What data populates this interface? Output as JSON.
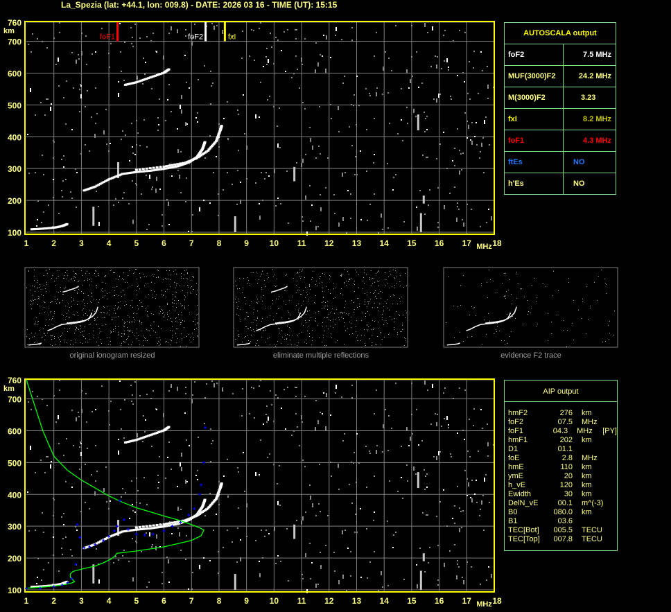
{
  "title": "La_Spezia (lat: +44.1, lon: 009.8) - DATE: 2026 03 16 - TIME (UT): 15:15",
  "colors": {
    "axis": "#ffff00",
    "grid": "#808080",
    "trace": "#ffffff",
    "foF1": "#ff0000",
    "foF2": "#ffffff",
    "fxI": "#ffff00",
    "aip_points": "#0000ff",
    "profile": "#00ff00",
    "table_border": "#7fe07f"
  },
  "autoscala": {
    "title": "AUTOSCALA output",
    "rows": [
      {
        "label": "foF2",
        "value": "7.5 MHz",
        "color": "#ffffff"
      },
      {
        "label": "MUF(3000)F2",
        "value": "24.2 MHz",
        "color": "#ffff80"
      },
      {
        "label": "M(3000)F2",
        "value": "3.23",
        "color": "#ffff80"
      },
      {
        "label": "fxI",
        "value": "8.2 MHz",
        "color": "#ffff00",
        "value_color": "#c8c800"
      },
      {
        "label": "foF1",
        "value": "4.3 MHz",
        "color": "#ff0000"
      },
      {
        "label": "ftEs",
        "value": "NO",
        "color": "#1e78ff"
      },
      {
        "label": "h'Es",
        "value": "NO",
        "color": "#ffff80"
      }
    ]
  },
  "aip": {
    "title": "AIP output",
    "rows": [
      {
        "name": "hmF2",
        "value": "276",
        "unit": "km",
        "extra": ""
      },
      {
        "name": "foF2",
        "value": "07.5",
        "unit": "MHz",
        "extra": ""
      },
      {
        "name": "foF1",
        "value": "04.3",
        "unit": "MHz",
        "extra": "[PY]"
      },
      {
        "name": "hmF1",
        "value": "202",
        "unit": "km",
        "extra": ""
      },
      {
        "name": "D1",
        "value": "01.1",
        "unit": "",
        "extra": ""
      },
      {
        "name": "foE",
        "value": "2.8",
        "unit": "MHz",
        "extra": ""
      },
      {
        "name": "hmE",
        "value": "110",
        "unit": "km",
        "extra": ""
      },
      {
        "name": "ymE",
        "value": "20",
        "unit": "km",
        "extra": ""
      },
      {
        "name": "h_vE",
        "value": "120",
        "unit": "km",
        "extra": ""
      },
      {
        "name": "Ewidth",
        "value": "30",
        "unit": "km",
        "extra": ""
      },
      {
        "name": "DelN_vE",
        "value": "00.1",
        "unit": "m^(-3)",
        "extra": ""
      },
      {
        "name": "B0",
        "value": "080.0",
        "unit": "km",
        "extra": ""
      },
      {
        "name": "B1",
        "value": "03.6",
        "unit": "",
        "extra": ""
      },
      {
        "name": "TEC[Bot]",
        "value": "005.5",
        "unit": "TECU",
        "extra": ""
      },
      {
        "name": "TEC[Top]",
        "value": "007.8",
        "unit": "TECU",
        "extra": ""
      }
    ]
  },
  "thumbnails": [
    {
      "label": "original ionogram resized"
    },
    {
      "label": "eliminate multiple reflections"
    },
    {
      "label": "evidence F2 trace"
    }
  ],
  "chart_data": [
    {
      "type": "scatter",
      "name": "autoscala-ionogram",
      "xlabel": "MHz",
      "ylabel": "km",
      "xlim": [
        1,
        18
      ],
      "ylim": [
        100,
        760
      ],
      "xticks": [
        1,
        2,
        3,
        4,
        5,
        6,
        7,
        8,
        9,
        10,
        11,
        12,
        13,
        14,
        15,
        16,
        17,
        18
      ],
      "yticks": [
        100,
        200,
        300,
        400,
        500,
        600,
        700,
        760
      ],
      "grid": true,
      "markers": [
        {
          "label": "foF1",
          "freq": 4.3,
          "color": "#ff0000"
        },
        {
          "label": "foF2",
          "freq": 7.5,
          "color": "#ffffff"
        },
        {
          "label": "fxI",
          "freq": 8.2,
          "color": "#ffff00"
        }
      ],
      "traces": {
        "E": [
          [
            1.2,
            108
          ],
          [
            1.6,
            110
          ],
          [
            2.0,
            113
          ],
          [
            2.3,
            118
          ],
          [
            2.5,
            125
          ]
        ],
        "F_o": [
          [
            3.1,
            230
          ],
          [
            3.5,
            242
          ],
          [
            4.0,
            265
          ],
          [
            4.5,
            282
          ],
          [
            5.0,
            288
          ],
          [
            5.5,
            292
          ],
          [
            6.0,
            298
          ],
          [
            6.5,
            306
          ],
          [
            6.9,
            318
          ],
          [
            7.2,
            335
          ],
          [
            7.4,
            360
          ],
          [
            7.5,
            385
          ]
        ],
        "F_x": [
          [
            5.0,
            295
          ],
          [
            6.0,
            305
          ],
          [
            6.8,
            318
          ],
          [
            7.2,
            332
          ],
          [
            7.6,
            355
          ],
          [
            7.9,
            385
          ],
          [
            8.05,
            420
          ],
          [
            8.1,
            435
          ]
        ],
        "F_2hop": [
          [
            4.6,
            562
          ],
          [
            5.0,
            570
          ],
          [
            5.5,
            585
          ],
          [
            6.0,
            600
          ],
          [
            6.2,
            612
          ]
        ]
      }
    },
    {
      "type": "scatter",
      "name": "aip-ionogram",
      "xlabel": "MHz",
      "ylabel": "km",
      "xlim": [
        1,
        18
      ],
      "ylim": [
        100,
        760
      ],
      "xticks": [
        1,
        2,
        3,
        4,
        5,
        6,
        7,
        8,
        9,
        10,
        11,
        12,
        13,
        14,
        15,
        16,
        17,
        18
      ],
      "yticks": [
        100,
        200,
        300,
        400,
        500,
        600,
        700,
        760
      ],
      "grid": true,
      "aip_points": [
        [
          1.0,
          105
        ],
        [
          1.5,
          105
        ],
        [
          2.0,
          110
        ],
        [
          2.3,
          115
        ],
        [
          2.5,
          122
        ],
        [
          2.65,
          135
        ],
        [
          2.8,
          180
        ],
        [
          2.85,
          305
        ],
        [
          2.95,
          265
        ],
        [
          3.1,
          232
        ],
        [
          3.3,
          235
        ],
        [
          3.5,
          242
        ],
        [
          3.8,
          255
        ],
        [
          4.0,
          268
        ],
        [
          4.2,
          285
        ],
        [
          4.3,
          300
        ],
        [
          4.4,
          380
        ],
        [
          4.55,
          320
        ],
        [
          4.7,
          290
        ],
        [
          5.0,
          275
        ],
        [
          5.3,
          272
        ],
        [
          5.6,
          275
        ],
        [
          6.0,
          285
        ],
        [
          6.3,
          300
        ],
        [
          6.6,
          312
        ],
        [
          6.9,
          335
        ],
        [
          7.1,
          355
        ],
        [
          7.3,
          400
        ],
        [
          7.35,
          430
        ],
        [
          7.45,
          500
        ],
        [
          7.5,
          610
        ]
      ],
      "profile": [
        [
          1.0,
          760
        ],
        [
          1.3,
          680
        ],
        [
          1.6,
          600
        ],
        [
          2.0,
          520
        ],
        [
          2.5,
          475
        ],
        [
          3.0,
          445
        ],
        [
          3.5,
          420
        ],
        [
          4.0,
          395
        ],
        [
          4.5,
          375
        ],
        [
          5.0,
          358
        ],
        [
          5.5,
          345
        ],
        [
          6.0,
          332
        ],
        [
          6.5,
          320
        ],
        [
          7.0,
          305
        ],
        [
          7.3,
          295
        ],
        [
          7.45,
          288
        ],
        [
          7.35,
          270
        ],
        [
          7.0,
          255
        ],
        [
          6.0,
          235
        ],
        [
          5.0,
          222
        ],
        [
          4.3,
          215
        ],
        [
          4.2,
          205
        ],
        [
          4.1,
          198
        ],
        [
          3.8,
          185
        ],
        [
          3.5,
          175
        ],
        [
          3.0,
          165
        ],
        [
          2.7,
          158
        ],
        [
          2.6,
          150
        ],
        [
          2.6,
          140
        ],
        [
          2.75,
          125
        ],
        [
          2.6,
          120
        ],
        [
          2.3,
          115
        ],
        [
          2.0,
          112
        ],
        [
          1.5,
          108
        ],
        [
          1.0,
          105
        ]
      ]
    }
  ]
}
